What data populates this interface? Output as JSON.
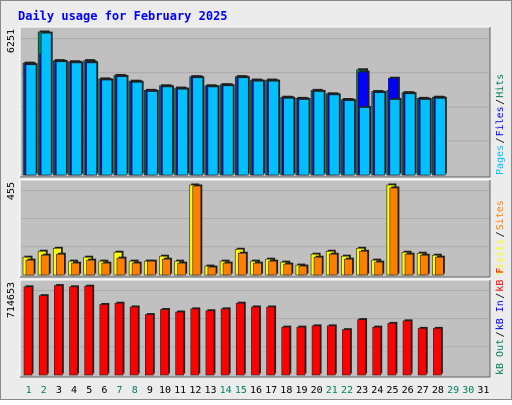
{
  "chart_data": [
    {
      "type": "bar",
      "title": "Daily usage for February 2025",
      "panel": "top",
      "y_tick_label": "6251",
      "ylim": [
        0,
        6251
      ],
      "side_labels": [
        "Pages",
        "/",
        "Files",
        "/",
        "Hits"
      ],
      "categories": [
        "1",
        "2",
        "3",
        "4",
        "5",
        "6",
        "7",
        "8",
        "9",
        "10",
        "11",
        "12",
        "13",
        "14",
        "15",
        "16",
        "17",
        "18",
        "19",
        "20",
        "21",
        "22",
        "23",
        "24",
        "25",
        "26",
        "27",
        "28",
        "29",
        "30",
        "31"
      ],
      "series": [
        {
          "name": "Hits",
          "values": [
            4890,
            6251,
            5000,
            4950,
            5000,
            4200,
            4350,
            4100,
            3700,
            3900,
            3800,
            4300,
            3900,
            3950,
            4300,
            4150,
            4150,
            3400,
            3350,
            3700,
            3550,
            3300,
            4600,
            3650,
            3700,
            3600,
            3350,
            3400,
            0,
            0,
            0
          ]
        },
        {
          "name": "Files",
          "values": [
            4860,
            5300,
            4970,
            4930,
            4950,
            4170,
            4320,
            4080,
            3680,
            3880,
            3770,
            4280,
            3870,
            3930,
            4280,
            4120,
            4120,
            3380,
            3330,
            3660,
            3530,
            3280,
            4500,
            3620,
            4230,
            3580,
            3320,
            3380,
            0,
            0,
            0
          ]
        },
        {
          "name": "Pages",
          "values": [
            4820,
            6200,
            4950,
            4900,
            4900,
            4150,
            4300,
            4050,
            3650,
            3850,
            3750,
            4250,
            3850,
            3900,
            4250,
            4100,
            4100,
            3350,
            3300,
            3650,
            3500,
            3250,
            2950,
            3600,
            3300,
            3550,
            3300,
            3350,
            0,
            0,
            0
          ]
        }
      ]
    },
    {
      "type": "bar",
      "panel": "middle",
      "y_tick_label": "455",
      "ylim": [
        0,
        455
      ],
      "side_labels": [
        "Visits",
        "/",
        "Sites"
      ],
      "categories": [
        "1",
        "2",
        "3",
        "4",
        "5",
        "6",
        "7",
        "8",
        "9",
        "10",
        "11",
        "12",
        "13",
        "14",
        "15",
        "16",
        "17",
        "18",
        "19",
        "20",
        "21",
        "22",
        "23",
        "24",
        "25",
        "26",
        "27",
        "28",
        "29",
        "30",
        "31"
      ],
      "series": [
        {
          "name": "Visits",
          "values": [
            90,
            120,
            135,
            70,
            90,
            70,
            115,
            70,
            70,
            95,
            70,
            455,
            45,
            70,
            130,
            70,
            80,
            65,
            50,
            105,
            120,
            95,
            135,
            75,
            455,
            115,
            110,
            100,
            0,
            0,
            0
          ]
        },
        {
          "name": "Sites",
          "values": [
            75,
            100,
            105,
            60,
            75,
            60,
            85,
            60,
            70,
            80,
            60,
            450,
            40,
            60,
            110,
            60,
            70,
            55,
            45,
            90,
            105,
            80,
            120,
            65,
            440,
            105,
            100,
            90,
            0,
            0,
            0
          ]
        }
      ]
    },
    {
      "type": "bar",
      "panel": "bottom",
      "y_tick_label": "714653",
      "ylim": [
        0,
        714653
      ],
      "side_labels": [
        "kB Out",
        "/",
        "kB In",
        "/",
        "kB F"
      ],
      "categories": [
        "1",
        "2",
        "3",
        "4",
        "5",
        "6",
        "7",
        "8",
        "9",
        "10",
        "11",
        "12",
        "13",
        "14",
        "15",
        "16",
        "17",
        "18",
        "19",
        "20",
        "21",
        "22",
        "23",
        "24",
        "25",
        "26",
        "27",
        "28",
        "29",
        "30",
        "31"
      ],
      "series": [
        {
          "name": "kB F",
          "values": [
            700000,
            630000,
            710000,
            700000,
            705000,
            560000,
            570000,
            540000,
            480000,
            520000,
            500000,
            525000,
            510000,
            525000,
            570000,
            540000,
            540000,
            380000,
            380000,
            390000,
            390000,
            360000,
            440000,
            380000,
            410000,
            430000,
            370000,
            370000,
            0,
            0,
            0
          ]
        }
      ]
    }
  ],
  "colors": {
    "hits": "#00805c",
    "files": "#0000ff",
    "pages": "#00c0ff",
    "visits": "#ffff00",
    "sites": "#ff8000",
    "kbf": "#ff0000",
    "title": "#0000ff",
    "plot_bg": "#c0c0c0",
    "frame_bg": "#ececec"
  },
  "day_label_colors": [
    "#00805c",
    "#00805c",
    "#000000",
    "#000000",
    "#000000",
    "#000000",
    "#00805c",
    "#00805c",
    "#000000",
    "#000000",
    "#000000",
    "#000000",
    "#000000",
    "#00805c",
    "#00805c",
    "#000000",
    "#000000",
    "#000000",
    "#000000",
    "#000000",
    "#00805c",
    "#00805c",
    "#000000",
    "#000000",
    "#000000",
    "#000000",
    "#000000",
    "#000000",
    "#00805c",
    "#00805c",
    "#000000"
  ]
}
